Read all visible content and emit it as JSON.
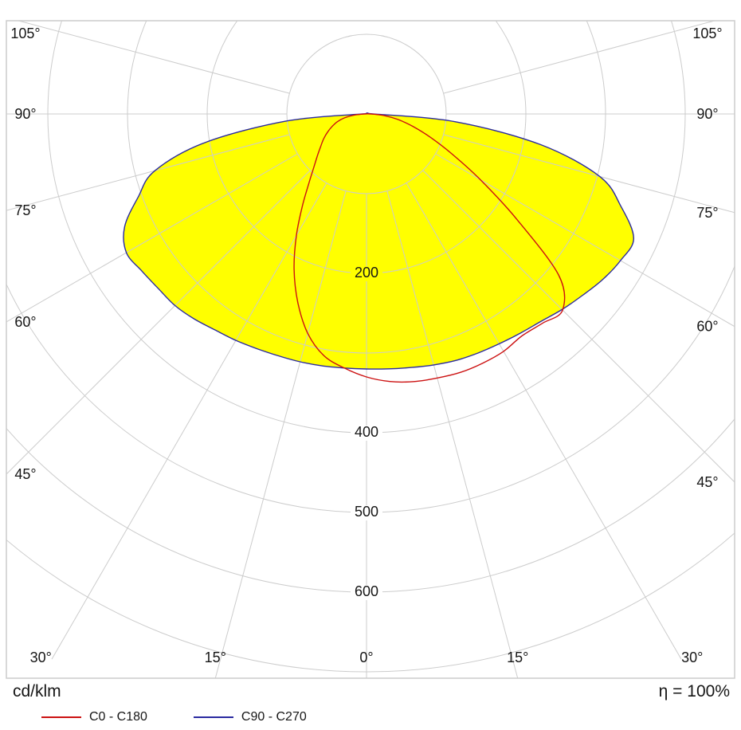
{
  "chart_data": {
    "type": "line",
    "subtype": "polar-photometric-intensity-distribution",
    "units_label": "cd/klm",
    "efficiency_label": "η = 100%",
    "angle_axis": {
      "min": -105,
      "max": 105,
      "step": 15,
      "unit": "°",
      "zero_direction": "down"
    },
    "radial_axis": {
      "min": 0,
      "max": 700,
      "step": 100,
      "unit": "cd/klm"
    },
    "grid": {
      "on": true,
      "ring_values": [
        100,
        200,
        300,
        400,
        500,
        600,
        700
      ],
      "ring_label_values": [
        200,
        400,
        500,
        600
      ],
      "ray_angles_deg": [
        0,
        15,
        30,
        45,
        60,
        75,
        90,
        105
      ],
      "angle_label_values": [
        0,
        15,
        30,
        45,
        60,
        75,
        90,
        105
      ]
    },
    "colors": {
      "grid": "#cccccc",
      "text": "#161616",
      "background": "#ffffff"
    },
    "gamma_deg": [
      -90,
      -85,
      -80,
      -75,
      -70,
      -65,
      -60,
      -55,
      -50,
      -45,
      -40,
      -35,
      -30,
      -25,
      -20,
      -15,
      -10,
      -5,
      0,
      5,
      10,
      15,
      20,
      25,
      30,
      35,
      40,
      45,
      50,
      55,
      60,
      65,
      70,
      75,
      80,
      85,
      90
    ],
    "series": [
      {
        "name": "C0 - C180",
        "plane": "C0-C180",
        "color": "#cc1111",
        "fill": "none",
        "values": [
          2,
          15,
          28,
          38,
          46,
          54,
          62,
          70,
          80,
          93,
          112,
          140,
          176,
          215,
          252,
          285,
          308,
          320,
          330,
          337,
          341,
          343,
          345,
          345,
          344,
          340,
          343,
          348,
          315,
          230,
          165,
          118,
          85,
          60,
          40,
          22,
          5
        ]
      },
      {
        "name": "C90 - C270",
        "plane": "C90-C270",
        "color": "#2a2aa0",
        "fill": "#ffff00",
        "values": [
          5,
          100,
          205,
          275,
          305,
          335,
          348,
          344,
          341,
          340,
          336,
          331,
          328,
          325,
          323,
          322,
          321,
          320,
          320,
          321,
          323,
          326,
          329,
          331,
          333,
          336,
          340,
          347,
          354,
          362,
          368,
          370,
          340,
          303,
          222,
          112,
          8
        ]
      }
    ],
    "legend_position": "bottom-left"
  }
}
